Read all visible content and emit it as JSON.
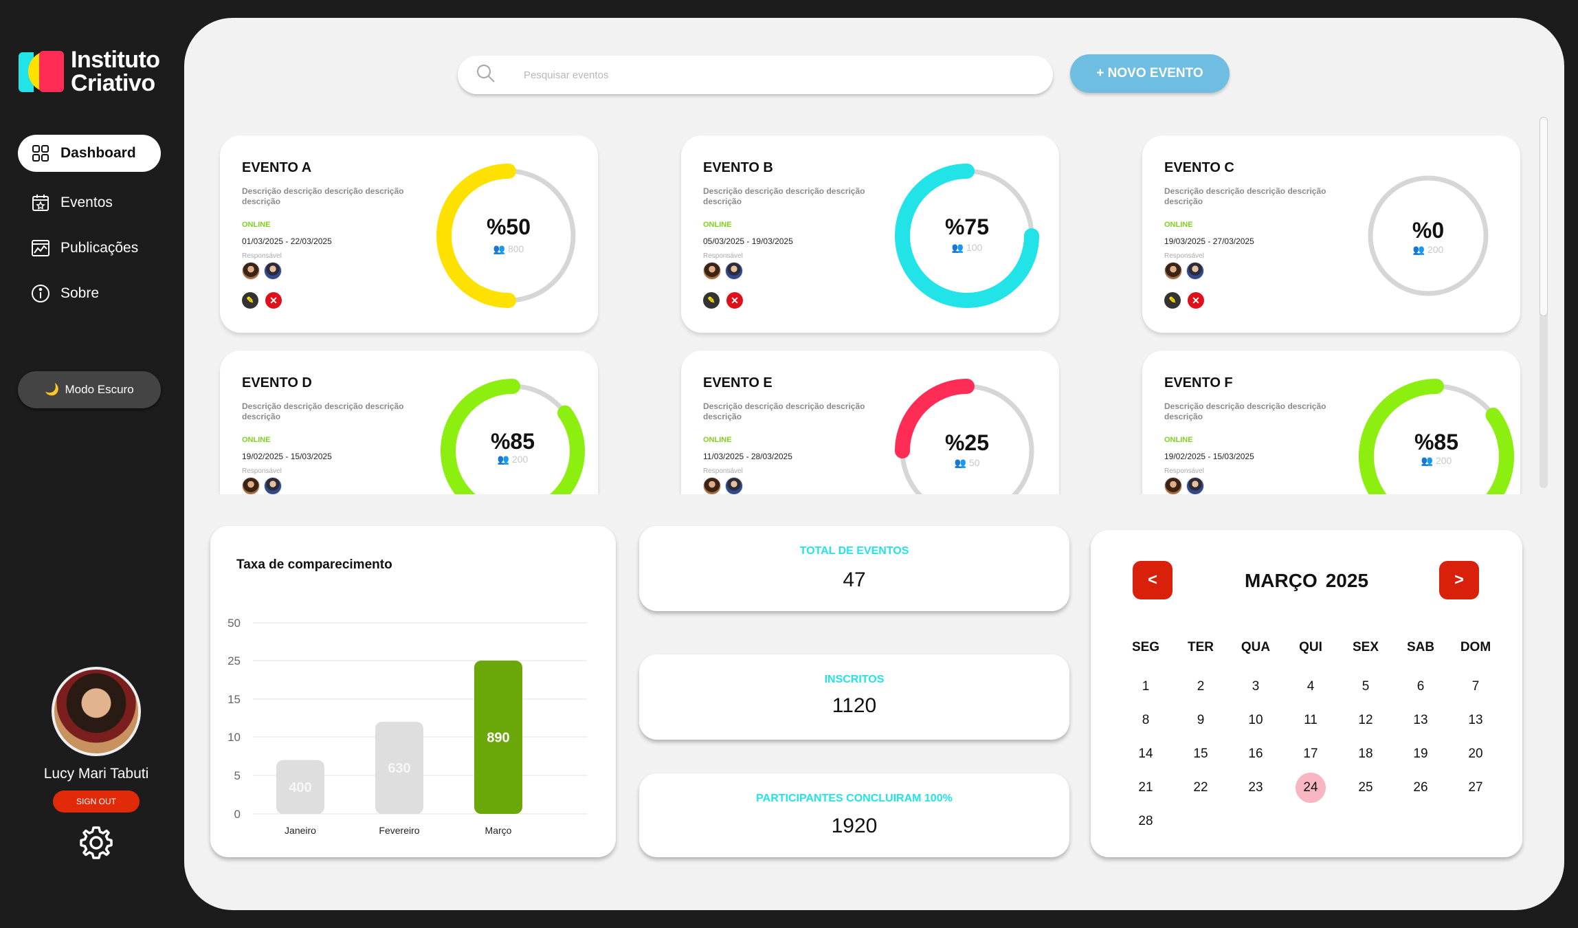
{
  "brand": {
    "line1": "Instituto",
    "line2": "Criativo"
  },
  "nav": [
    {
      "label": "Dashboard",
      "icon": "grid-icon",
      "active": true
    },
    {
      "label": "Eventos",
      "icon": "calendar-star-icon"
    },
    {
      "label": "Publicações",
      "icon": "chart-image-icon"
    },
    {
      "label": "Sobre",
      "icon": "info-icon"
    }
  ],
  "dark_mode": {
    "label": "Modo Escuro",
    "icon": "moon-icon"
  },
  "user": {
    "name": "Lucy Mari Tabuti",
    "signout": "SIGN OUT"
  },
  "search": {
    "placeholder": "Pesquisar eventos"
  },
  "new_event": {
    "label": "+ NOVO EVENTO"
  },
  "events": [
    {
      "title": "EVENTO A",
      "desc": "Descrição descrição descrição descrição descrição",
      "status": "ONLINE",
      "dates": "01/03/2025 -  22/03/2025",
      "resp": "Responsável",
      "pct": "%50",
      "count": "800",
      "percent": 50,
      "color": "#ffe100"
    },
    {
      "title": "EVENTO B",
      "desc": "Descrição descrição descrição descrição descrição",
      "status": "ONLINE",
      "dates": "05/03/2025 -  19/03/2025",
      "resp": "Responsável",
      "pct": "%75",
      "count": "100",
      "percent": 75,
      "color": "#22e3e8"
    },
    {
      "title": "EVENTO C",
      "desc": "Descrição descrição descrição descrição descrição",
      "status": "ONLINE",
      "dates": "19/03/2025 -  27/03/2025",
      "resp": "Responsável",
      "pct": "%0",
      "count": "200",
      "percent": 0,
      "color": "#d0d0d0"
    },
    {
      "title": "EVENTO D",
      "desc": "Descrição descrição descrição descrição descrição",
      "status": "ONLINE",
      "dates": "19/02/2025 -  15/03/2025",
      "resp": "Responsável",
      "pct": "%85",
      "count": "200",
      "percent": 85,
      "color": "#8cef10"
    },
    {
      "title": "EVENTO E",
      "desc": "Descrição descrição descrição descrição descrição",
      "status": "ONLINE",
      "dates": "11/03/2025 -  28/03/2025",
      "resp": "Responsável",
      "pct": "%25",
      "count": "50",
      "percent": 25,
      "color": "#ff2d55"
    },
    {
      "title": "EVENTO F",
      "desc": "Descrição descrição descrição descrição descrição",
      "status": "ONLINE",
      "dates": "19/02/2025 -  15/03/2025",
      "resp": "Responsável",
      "pct": "%85",
      "count": "200",
      "percent": 85,
      "color": "#8cef10"
    }
  ],
  "stats": [
    {
      "label": "TOTAL DE EVENTOS",
      "value": "47"
    },
    {
      "label": "INSCRITOS",
      "value": "1120"
    },
    {
      "label": "PARTICIPANTES CONCLUIRAM 100%",
      "value": "1920"
    }
  ],
  "chart_data": {
    "type": "bar",
    "title": "Taxa de comparecimento",
    "categories": [
      "Janeiro",
      "Fevereiro",
      "Março"
    ],
    "values": [
      400,
      630,
      890
    ],
    "value_labels": [
      "400",
      "630",
      "890"
    ],
    "bar_heights_on_axis": [
      7,
      12,
      25
    ],
    "yticks": [
      "0",
      "5",
      "10",
      "15",
      "25",
      "50"
    ],
    "colors": [
      "#dedede",
      "#dedede",
      "#6aa80a"
    ]
  },
  "calendar": {
    "month": "MARÇO",
    "year": "2025",
    "prev": "<",
    "next": ">",
    "weekdays": [
      "SEG",
      "TER",
      "QUA",
      "QUI",
      "SEX",
      "SAB",
      "DOM"
    ],
    "days": [
      "1",
      "2",
      "3",
      "4",
      "5",
      "6",
      "7",
      "8",
      "9",
      "10",
      "11",
      "12",
      "13",
      "13",
      "14",
      "15",
      "16",
      "17",
      "18",
      "19",
      "20",
      "21",
      "22",
      "23",
      "24",
      "25",
      "26",
      "27",
      "28"
    ],
    "today": "24"
  }
}
